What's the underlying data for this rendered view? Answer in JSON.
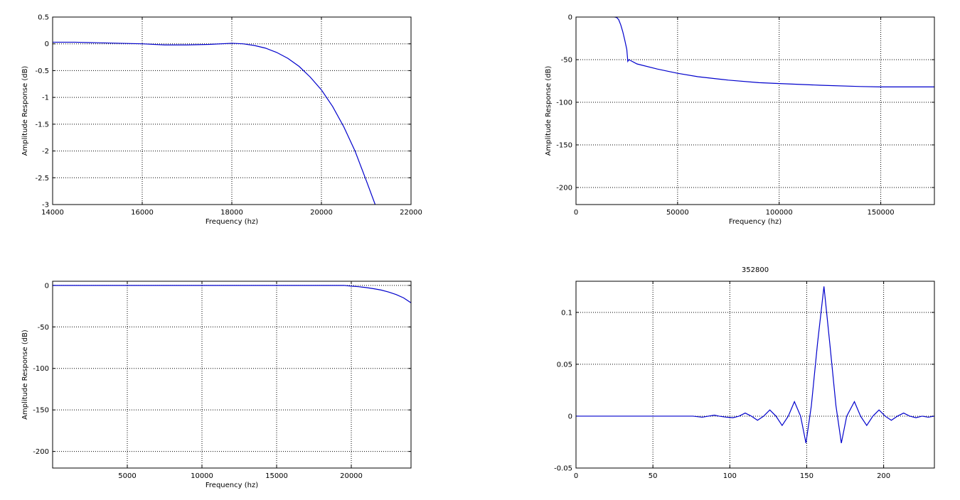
{
  "chart_data": [
    {
      "type": "line",
      "title": "",
      "xlabel": "Frequency (hz)",
      "ylabel": "Amplitude Response (dB)",
      "xlim": [
        14000,
        22000
      ],
      "ylim": [
        -3,
        0.5
      ],
      "xticks": [
        14000,
        16000,
        18000,
        20000,
        22000
      ],
      "yticks": [
        0.5,
        0,
        -0.5,
        -1,
        -1.5,
        -2,
        -2.5,
        -3
      ],
      "xtick_labels": [
        "14000",
        "16000",
        "18000",
        "20000",
        "22000"
      ],
      "ytick_labels": [
        "0.5",
        "0",
        "-0.5",
        "-1",
        "-1.5",
        "-2",
        "-2.5",
        "-3"
      ],
      "grid": true,
      "series": [
        {
          "color": "#0000cc",
          "x": [
            14000,
            14500,
            15000,
            15500,
            16000,
            16500,
            17000,
            17500,
            18000,
            18250,
            18500,
            18750,
            19000,
            19250,
            19500,
            19750,
            20000,
            20250,
            20500,
            20750,
            21000,
            21200
          ],
          "y": [
            0.03,
            0.03,
            0.02,
            0.01,
            0.0,
            -0.02,
            -0.02,
            -0.01,
            0.01,
            0.0,
            -0.03,
            -0.08,
            -0.16,
            -0.27,
            -0.42,
            -0.62,
            -0.86,
            -1.17,
            -1.55,
            -2.0,
            -2.55,
            -3.0
          ]
        }
      ]
    },
    {
      "type": "line",
      "title": "",
      "xlabel": "Frequency (hz)",
      "ylabel": "Amplitude Response (dB)",
      "xlim": [
        0,
        176400
      ],
      "ylim": [
        -220,
        0
      ],
      "xticks": [
        0,
        50000,
        100000,
        150000
      ],
      "yticks": [
        0,
        -50,
        -100,
        -150,
        -200
      ],
      "xtick_labels": [
        "0",
        "50000",
        "100000",
        "150000"
      ],
      "ytick_labels": [
        "0",
        "-50",
        "-100",
        "-150",
        "-200"
      ],
      "grid": true,
      "series": [
        {
          "color": "#0000cc",
          "x": [
            19000,
            20000,
            21000,
            22000,
            23000,
            24000,
            25000,
            25500,
            26000,
            30000,
            40000,
            50000,
            60000,
            75000,
            90000,
            100000,
            120000,
            140000,
            150000,
            165000,
            176400
          ],
          "y": [
            0,
            -0.5,
            -3,
            -9,
            -17,
            -27,
            -38,
            -52,
            -50,
            -55,
            -61,
            -66,
            -70,
            -74,
            -77,
            -78,
            -80,
            -81.5,
            -82,
            -82,
            -82
          ]
        }
      ]
    },
    {
      "type": "line",
      "title": "",
      "xlabel": "Frequency (hz)",
      "ylabel": "Amplitude Response (dB)",
      "xlim": [
        0,
        24000
      ],
      "ylim": [
        -220,
        5
      ],
      "xticks": [
        5000,
        10000,
        15000,
        20000
      ],
      "yticks": [
        0,
        -50,
        -100,
        -150,
        -200
      ],
      "xtick_labels": [
        "5000",
        "10000",
        "15000",
        "20000"
      ],
      "ytick_labels": [
        "0",
        "-50",
        "-100",
        "-150",
        "-200"
      ],
      "grid": true,
      "series": [
        {
          "color": "#0000cc",
          "x": [
            0,
            5000,
            10000,
            15000,
            18000,
            19000,
            19500,
            20000,
            20500,
            21000,
            21500,
            22000,
            22500,
            23000,
            23500,
            24000
          ],
          "y": [
            0,
            0,
            0,
            0,
            0,
            0,
            0,
            -0.9,
            -1.6,
            -2.6,
            -4,
            -5.6,
            -8,
            -11,
            -15,
            -21
          ]
        }
      ]
    },
    {
      "type": "line",
      "title": "352800",
      "xlabel": "",
      "ylabel": "",
      "xlim": [
        0,
        233
      ],
      "ylim": [
        -0.05,
        0.13
      ],
      "xticks": [
        0,
        50,
        100,
        150,
        200
      ],
      "yticks": [
        0.1,
        0.05,
        0,
        -0.05
      ],
      "xtick_labels": [
        "0",
        "50",
        "100",
        "150",
        "200"
      ],
      "ytick_labels": [
        "0.1",
        "0.05",
        "0",
        "-0.05"
      ],
      "grid": true,
      "series": [
        {
          "color": "#0000cc",
          "x": [
            0,
            76,
            82,
            90,
            93,
            98,
            102,
            106,
            110,
            114,
            118,
            122,
            126,
            130,
            134,
            138,
            142,
            146,
            149.5,
            153,
            157,
            161.2,
            165,
            169,
            172.5,
            176,
            181,
            185,
            189,
            193,
            197,
            201,
            205,
            209,
            213,
            217,
            221,
            225,
            229,
            233
          ],
          "y": [
            0,
            0,
            -0.001,
            0.001,
            0.0,
            -0.001,
            -0.0015,
            0.0,
            0.003,
            0.0,
            -0.004,
            0.0,
            0.006,
            0.0,
            -0.009,
            0.0,
            0.014,
            0.0,
            -0.026,
            0.01,
            0.07,
            0.125,
            0.07,
            0.01,
            -0.026,
            0.0,
            0.014,
            0.0,
            -0.009,
            0.0,
            0.006,
            0.0,
            -0.004,
            0.0,
            0.003,
            0.0,
            -0.0015,
            0.0,
            -0.001,
            0.0
          ]
        }
      ]
    }
  ]
}
